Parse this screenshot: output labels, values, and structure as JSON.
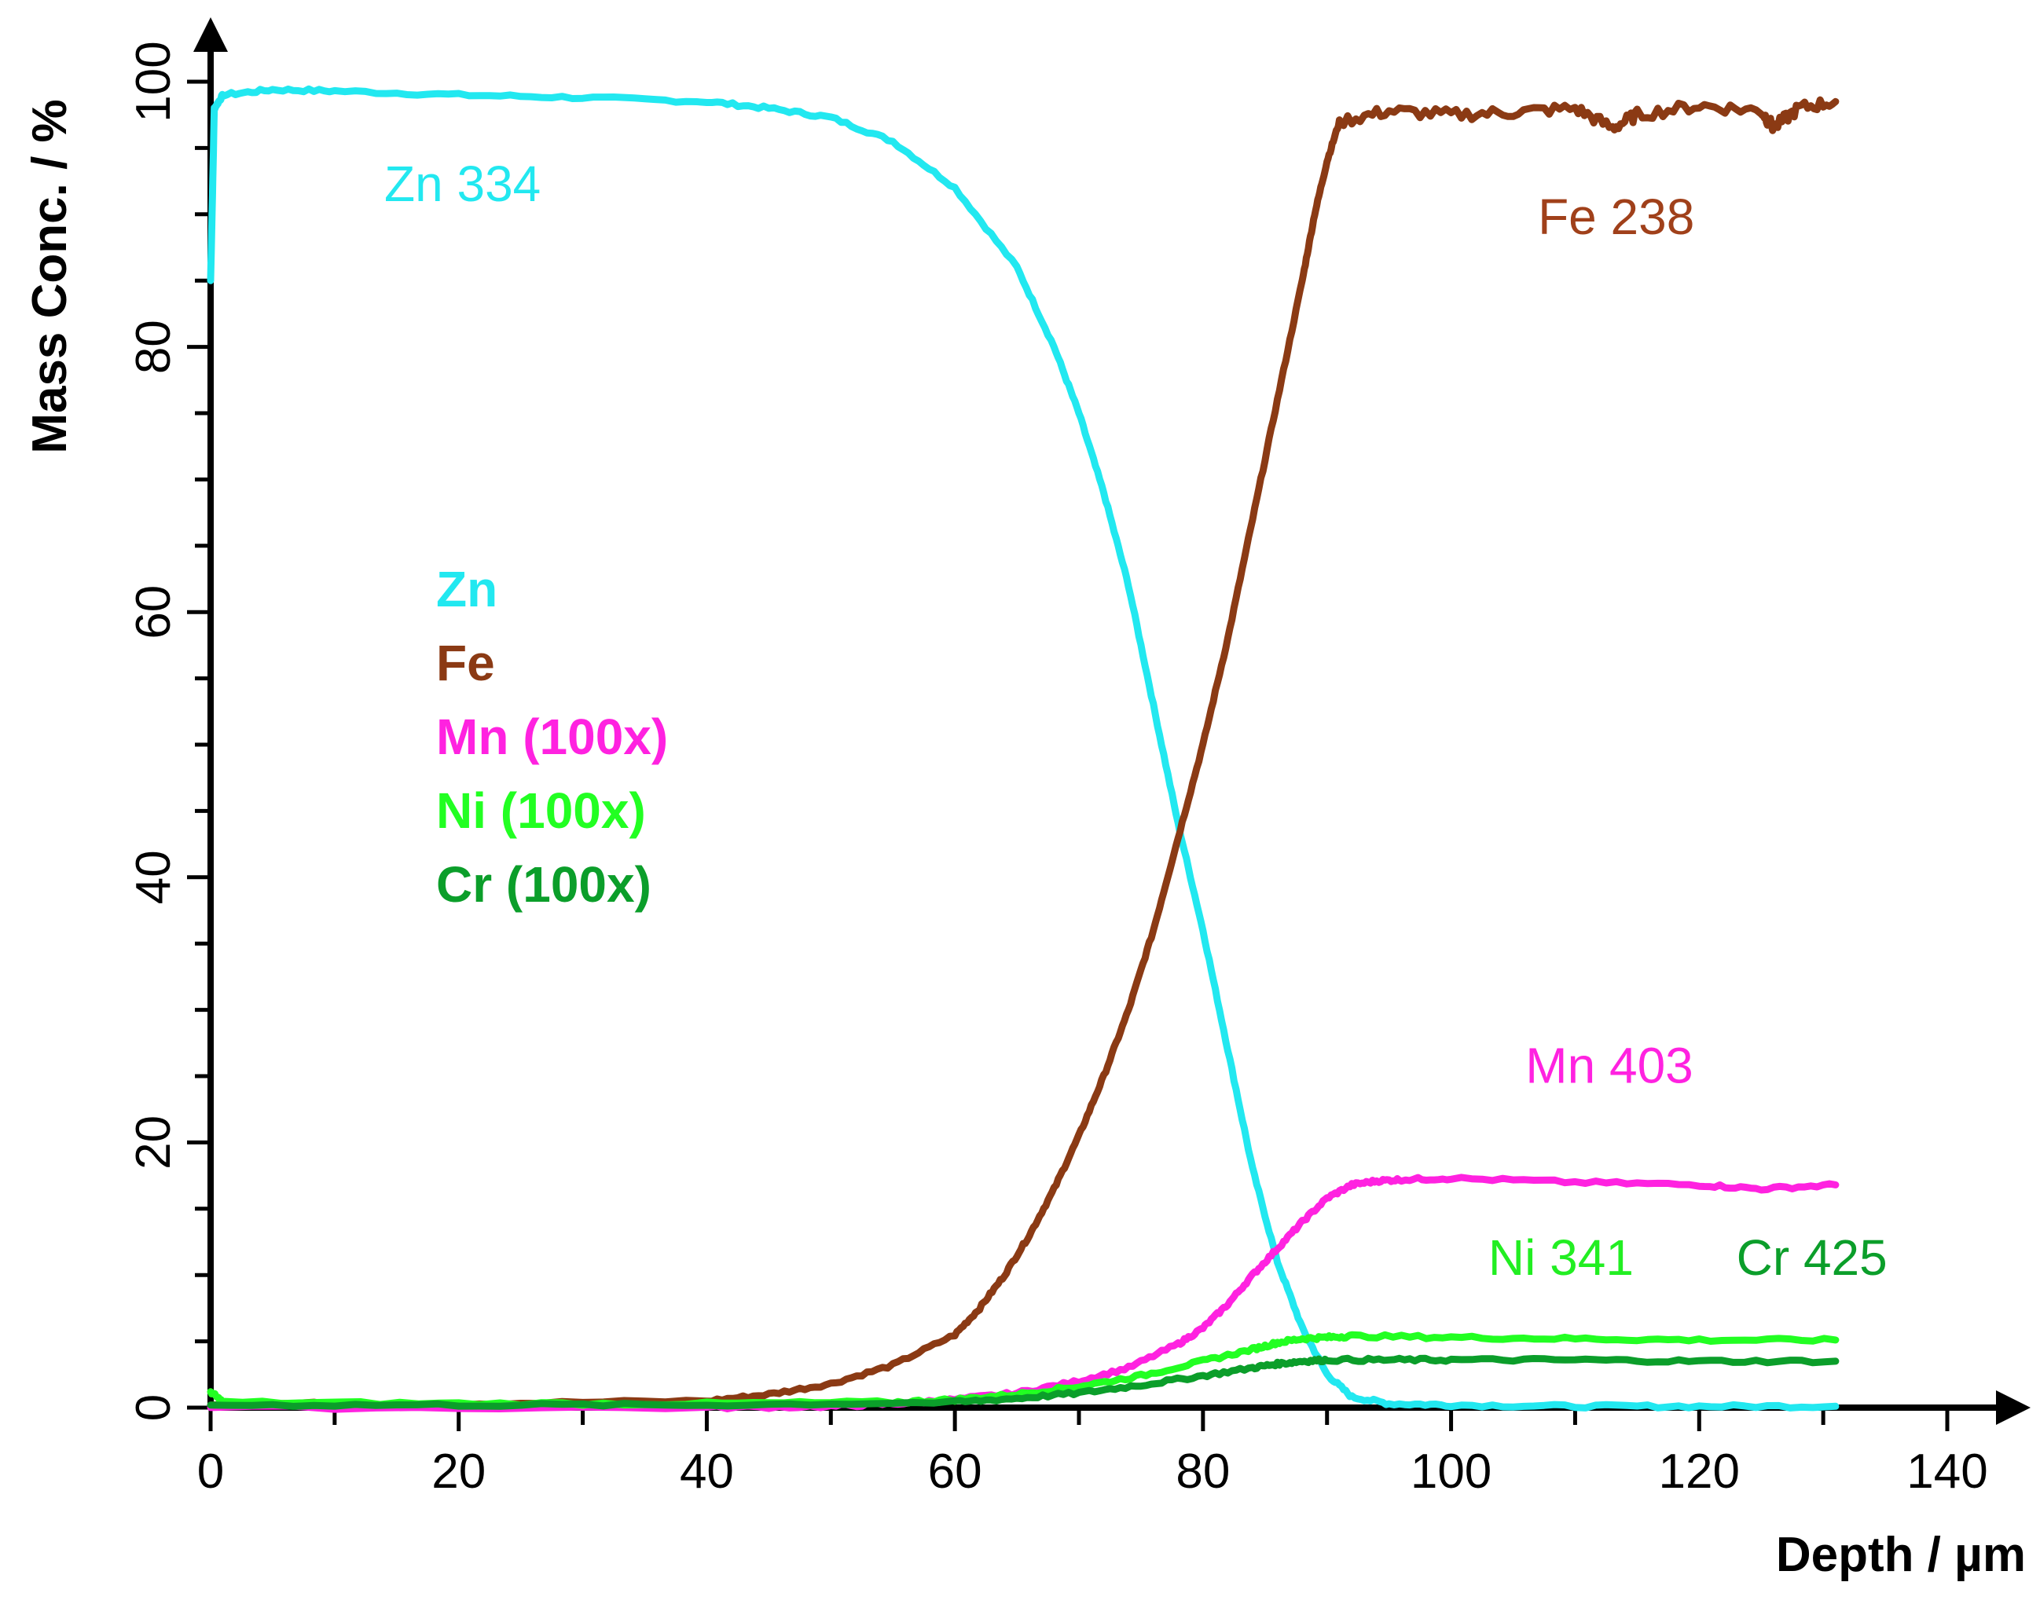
{
  "chart_data": {
    "type": "line",
    "title": "",
    "xlabel": "Depth / µm",
    "ylabel": "Mass Conc. / %",
    "xlim": [
      0,
      140
    ],
    "ylim": [
      0,
      100
    ],
    "x_ticks": [
      0,
      20,
      40,
      60,
      80,
      100,
      120,
      140
    ],
    "y_ticks": [
      0,
      20,
      40,
      60,
      80,
      100
    ],
    "grid": false,
    "legend": {
      "placement": "center-left",
      "entries": [
        {
          "label": "Zn",
          "color": "#22e8f0"
        },
        {
          "label": "Fe",
          "color": "#8b3a14"
        },
        {
          "label": "Mn (100x)",
          "color": "#ff22e0"
        },
        {
          "label": "Ni (100x)",
          "color": "#22ff22"
        },
        {
          "label": "Cr (100x)",
          "color": "#0b9e2a"
        }
      ]
    },
    "series": [
      {
        "name": "Zn 334",
        "color": "#22e8f0",
        "x": [
          0,
          0.3,
          1,
          5,
          10,
          20,
          30,
          40,
          45,
          50,
          55,
          60,
          65,
          68,
          70,
          72,
          74,
          76,
          78,
          80,
          82,
          84,
          86,
          88,
          90,
          92,
          95,
          100,
          110,
          120,
          131
        ],
        "y": [
          85,
          98,
          99,
          99.4,
          99.3,
          99,
          98.8,
          98.5,
          98,
          97.3,
          95.5,
          92,
          86,
          80,
          75,
          69,
          62,
          53,
          44,
          36,
          27,
          18,
          11,
          6,
          2.5,
          0.8,
          0.3,
          0.2,
          0.1,
          0.1,
          0.1
        ]
      },
      {
        "name": "Fe 238",
        "color": "#8b3a14",
        "x": [
          0,
          20,
          40,
          45,
          50,
          55,
          60,
          62,
          64,
          66,
          68,
          70,
          72,
          74,
          76,
          78,
          80,
          82,
          84,
          86,
          88,
          89,
          90,
          91,
          95,
          100,
          105,
          110,
          113,
          115,
          120,
          125,
          126,
          128,
          131
        ],
        "y": [
          0.3,
          0.3,
          0.5,
          1,
          1.8,
          3.2,
          5.5,
          7.5,
          10,
          13,
          16.5,
          20.5,
          25,
          30,
          36,
          43,
          50,
          58,
          67,
          76,
          85,
          90,
          94,
          97,
          97.8,
          97.5,
          97.7,
          98,
          96.5,
          97.5,
          98.2,
          97.8,
          96.5,
          98,
          98.5
        ]
      },
      {
        "name": "Mn 403",
        "color": "#ff22e0",
        "x": [
          0,
          40,
          50,
          55,
          60,
          65,
          70,
          74,
          78,
          80,
          82,
          84,
          86,
          88,
          90,
          92,
          94,
          96,
          100,
          110,
          120,
          125,
          131
        ],
        "y": [
          0,
          0,
          0.1,
          0.3,
          0.6,
          1.1,
          2,
          3,
          4.8,
          6,
          7.8,
          10,
          12,
          14,
          15.8,
          16.8,
          17.1,
          17.2,
          17.3,
          17,
          16.8,
          16.5,
          16.8
        ]
      },
      {
        "name": "Ni 341",
        "color": "#22ff22",
        "x": [
          0,
          1,
          20,
          40,
          55,
          60,
          65,
          70,
          75,
          80,
          84,
          86,
          88,
          90,
          92,
          100,
          110,
          120,
          131
        ],
        "y": [
          1.2,
          0.4,
          0.3,
          0.3,
          0.4,
          0.6,
          1,
          1.6,
          2.4,
          3.5,
          4.4,
          4.9,
          5.2,
          5.3,
          5.4,
          5.3,
          5.2,
          5.1,
          5.1
        ]
      },
      {
        "name": "Cr 425",
        "color": "#0b9e2a",
        "x": [
          0,
          20,
          40,
          60,
          65,
          70,
          75,
          80,
          84,
          86,
          88,
          90,
          95,
          100,
          110,
          120,
          131
        ],
        "y": [
          0.2,
          0.2,
          0.2,
          0.4,
          0.7,
          1.1,
          1.7,
          2.4,
          3,
          3.3,
          3.5,
          3.6,
          3.6,
          3.6,
          3.6,
          3.5,
          3.5
        ]
      }
    ],
    "annotations": [
      {
        "text": "Zn 334",
        "x": 14,
        "y": 91,
        "color": "#22e8f0",
        "weight": "normal"
      },
      {
        "text": "Fe 238",
        "x": 107,
        "y": 88.5,
        "color": "#a0401a",
        "weight": "normal"
      },
      {
        "text": "Mn 403",
        "x": 106,
        "y": 24.5,
        "color": "#ff22e0",
        "weight": "normal"
      },
      {
        "text": "Ni 341",
        "x": 103,
        "y": 10,
        "color": "#22ee22",
        "weight": "normal"
      },
      {
        "text": "Cr 425",
        "x": 123,
        "y": 10,
        "color": "#0b9e2a",
        "weight": "normal"
      }
    ]
  }
}
